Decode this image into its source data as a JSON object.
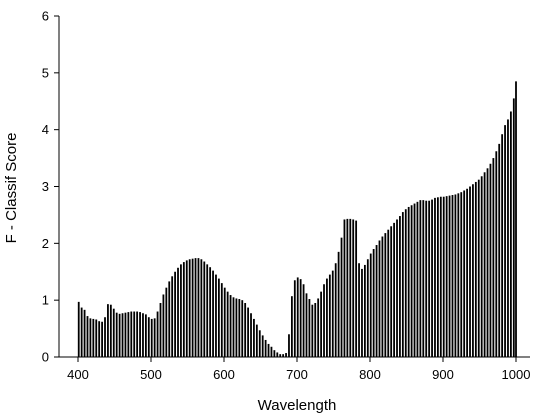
{
  "chart_data": {
    "type": "bar",
    "title": "",
    "xlabel": "Wavelength",
    "ylabel": "F - Classif Score",
    "xlim": [
      400,
      1000
    ],
    "ylim": [
      0,
      6
    ],
    "xticks": [
      400,
      500,
      600,
      700,
      800,
      900,
      1000
    ],
    "yticks": [
      0,
      1,
      2,
      3,
      4,
      5,
      6
    ],
    "xtick_labels": [
      "400",
      "500",
      "600",
      "700",
      "800",
      "900",
      "1000"
    ],
    "ytick_labels": [
      "0",
      "1",
      "2",
      "3",
      "4",
      "5",
      "6"
    ],
    "grid": false,
    "legend": "none",
    "bar_color": "#000000",
    "points": [
      [
        401,
        0.97
      ],
      [
        405,
        0.87
      ],
      [
        409,
        0.83
      ],
      [
        413,
        0.72
      ],
      [
        417,
        0.68
      ],
      [
        421,
        0.67
      ],
      [
        425,
        0.66
      ],
      [
        429,
        0.63
      ],
      [
        433,
        0.62
      ],
      [
        437,
        0.7
      ],
      [
        441,
        0.93
      ],
      [
        445,
        0.92
      ],
      [
        449,
        0.85
      ],
      [
        453,
        0.78
      ],
      [
        457,
        0.76
      ],
      [
        461,
        0.77
      ],
      [
        465,
        0.78
      ],
      [
        469,
        0.79
      ],
      [
        473,
        0.8
      ],
      [
        477,
        0.8
      ],
      [
        481,
        0.8
      ],
      [
        485,
        0.79
      ],
      [
        489,
        0.77
      ],
      [
        493,
        0.75
      ],
      [
        497,
        0.7
      ],
      [
        501,
        0.67
      ],
      [
        505,
        0.68
      ],
      [
        509,
        0.8
      ],
      [
        513,
        0.95
      ],
      [
        517,
        1.1
      ],
      [
        521,
        1.22
      ],
      [
        525,
        1.33
      ],
      [
        529,
        1.42
      ],
      [
        533,
        1.5
      ],
      [
        537,
        1.57
      ],
      [
        541,
        1.63
      ],
      [
        545,
        1.67
      ],
      [
        549,
        1.7
      ],
      [
        553,
        1.72
      ],
      [
        557,
        1.73
      ],
      [
        561,
        1.74
      ],
      [
        565,
        1.74
      ],
      [
        569,
        1.72
      ],
      [
        573,
        1.68
      ],
      [
        577,
        1.63
      ],
      [
        581,
        1.58
      ],
      [
        585,
        1.52
      ],
      [
        589,
        1.45
      ],
      [
        593,
        1.38
      ],
      [
        597,
        1.3
      ],
      [
        601,
        1.22
      ],
      [
        605,
        1.15
      ],
      [
        609,
        1.09
      ],
      [
        613,
        1.05
      ],
      [
        617,
        1.03
      ],
      [
        621,
        1.02
      ],
      [
        625,
        1.0
      ],
      [
        629,
        0.95
      ],
      [
        633,
        0.87
      ],
      [
        637,
        0.77
      ],
      [
        641,
        0.67
      ],
      [
        645,
        0.57
      ],
      [
        649,
        0.47
      ],
      [
        653,
        0.38
      ],
      [
        657,
        0.3
      ],
      [
        661,
        0.23
      ],
      [
        665,
        0.18
      ],
      [
        669,
        0.12
      ],
      [
        673,
        0.08
      ],
      [
        677,
        0.05
      ],
      [
        681,
        0.05
      ],
      [
        685,
        0.07
      ],
      [
        689,
        0.4
      ],
      [
        693,
        1.07
      ],
      [
        697,
        1.35
      ],
      [
        701,
        1.4
      ],
      [
        705,
        1.37
      ],
      [
        709,
        1.28
      ],
      [
        713,
        1.12
      ],
      [
        717,
        1.02
      ],
      [
        721,
        0.92
      ],
      [
        725,
        0.95
      ],
      [
        729,
        1.03
      ],
      [
        733,
        1.15
      ],
      [
        737,
        1.28
      ],
      [
        741,
        1.38
      ],
      [
        745,
        1.45
      ],
      [
        749,
        1.52
      ],
      [
        753,
        1.65
      ],
      [
        757,
        1.85
      ],
      [
        761,
        2.1
      ],
      [
        765,
        2.42
      ],
      [
        769,
        2.43
      ],
      [
        773,
        2.43
      ],
      [
        777,
        2.42
      ],
      [
        781,
        2.4
      ],
      [
        785,
        1.65
      ],
      [
        789,
        1.55
      ],
      [
        793,
        1.62
      ],
      [
        797,
        1.72
      ],
      [
        801,
        1.82
      ],
      [
        805,
        1.9
      ],
      [
        809,
        1.97
      ],
      [
        813,
        2.05
      ],
      [
        817,
        2.12
      ],
      [
        821,
        2.18
      ],
      [
        825,
        2.24
      ],
      [
        829,
        2.3
      ],
      [
        833,
        2.36
      ],
      [
        837,
        2.42
      ],
      [
        841,
        2.48
      ],
      [
        845,
        2.55
      ],
      [
        849,
        2.6
      ],
      [
        853,
        2.64
      ],
      [
        857,
        2.67
      ],
      [
        861,
        2.7
      ],
      [
        865,
        2.73
      ],
      [
        869,
        2.76
      ],
      [
        873,
        2.76
      ],
      [
        877,
        2.75
      ],
      [
        881,
        2.75
      ],
      [
        885,
        2.77
      ],
      [
        889,
        2.8
      ],
      [
        893,
        2.81
      ],
      [
        897,
        2.82
      ],
      [
        901,
        2.82
      ],
      [
        905,
        2.83
      ],
      [
        909,
        2.84
      ],
      [
        913,
        2.85
      ],
      [
        917,
        2.86
      ],
      [
        921,
        2.88
      ],
      [
        925,
        2.9
      ],
      [
        929,
        2.93
      ],
      [
        933,
        2.96
      ],
      [
        937,
        3.0
      ],
      [
        941,
        3.04
      ],
      [
        945,
        3.08
      ],
      [
        949,
        3.12
      ],
      [
        953,
        3.18
      ],
      [
        957,
        3.25
      ],
      [
        961,
        3.32
      ],
      [
        965,
        3.4
      ],
      [
        969,
        3.5
      ],
      [
        973,
        3.62
      ],
      [
        977,
        3.75
      ],
      [
        981,
        3.92
      ],
      [
        985,
        4.08
      ],
      [
        989,
        4.18
      ],
      [
        993,
        4.32
      ],
      [
        997,
        4.55
      ],
      [
        1000,
        4.85
      ]
    ]
  }
}
